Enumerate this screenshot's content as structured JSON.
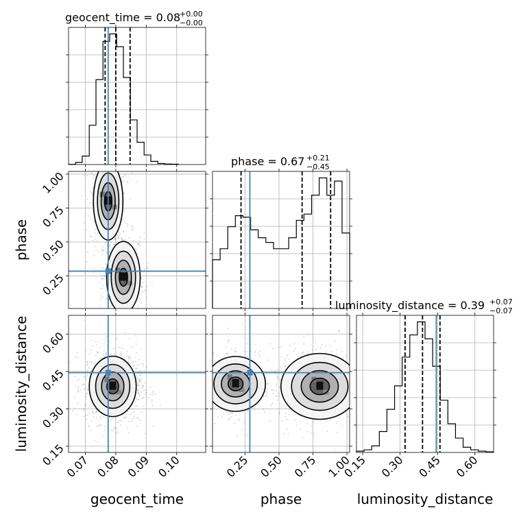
{
  "chart_data": {
    "type": "corner",
    "parameters": [
      "geocent_time",
      "phase",
      "luminosity_distance"
    ],
    "titles": [
      {
        "name": "geocent_time",
        "median": "0.08",
        "plus": "+0.00",
        "minus": "−0.00"
      },
      {
        "name": "phase",
        "median": "0.67",
        "plus": "+0.21",
        "minus": "−0.45"
      },
      {
        "name": "luminosity_distance",
        "median": "0.39",
        "plus": "+0.07",
        "minus": "−0.07"
      }
    ],
    "axis_labels": {
      "geocent_time": "geocent_time",
      "phase": "phase",
      "luminosity_distance": "luminosity_distance"
    },
    "ranges": {
      "geocent_time": [
        0.0645,
        0.1095
      ],
      "phase": [
        0.01,
        1.02
      ],
      "luminosity_distance": [
        0.125,
        0.675
      ]
    },
    "ticks": {
      "geocent_time": {
        "values": [
          0.07,
          0.08,
          0.09,
          0.1
        ],
        "labels": [
          "0.07",
          "0.08",
          "0.09",
          "0.10"
        ]
      },
      "phase": {
        "values": [
          0.25,
          0.5,
          0.75,
          1.0
        ],
        "labels": [
          "0.25",
          "0.50",
          "0.75",
          "1.00"
        ]
      },
      "luminosity_distance": {
        "values": [
          0.15,
          0.3,
          0.45,
          0.6
        ],
        "labels": [
          "0.15",
          "0.30",
          "0.45",
          "0.60"
        ]
      }
    },
    "truth_values": {
      "geocent_time": 0.0775,
      "phase": 0.285,
      "luminosity_distance": 0.445
    },
    "quantiles": {
      "geocent_time": [
        0.0765,
        0.08,
        0.0847
      ],
      "phase": [
        0.22,
        0.67,
        0.88
      ],
      "luminosity_distance": [
        0.32,
        0.39,
        0.46
      ]
    },
    "histograms": {
      "geocent_time": {
        "edges": [
          0.0645,
          0.0668,
          0.069,
          0.0713,
          0.0735,
          0.0758,
          0.078,
          0.0803,
          0.0825,
          0.0848,
          0.087,
          0.0893,
          0.0915,
          0.0938,
          0.096,
          0.0983,
          0.1005
        ],
        "counts": [
          0.2,
          2,
          8,
          37,
          80,
          116,
          123,
          111,
          82,
          42,
          21,
          9,
          3,
          1,
          0.5,
          0.3
        ]
      },
      "phase": {
        "edges": [
          0.01,
          0.0661,
          0.1223,
          0.1784,
          0.2346,
          0.2907,
          0.3468,
          0.403,
          0.4591,
          0.5152,
          0.5714,
          0.6275,
          0.6837,
          0.7398,
          0.7959,
          0.8521,
          0.9082,
          0.9643,
          1.0205
        ],
        "counts": [
          31,
          38,
          52,
          59,
          58,
          50,
          45,
          42,
          38,
          38,
          45,
          56,
          60,
          72,
          83,
          72,
          81,
          48
        ]
      },
      "luminosity_distance": {
        "edges": [
          0.125,
          0.1556,
          0.1861,
          0.2167,
          0.2472,
          0.2778,
          0.3083,
          0.3389,
          0.3694,
          0.4,
          0.4306,
          0.4611,
          0.4917,
          0.5222,
          0.5528,
          0.5833,
          0.6139,
          0.6444,
          0.675
        ],
        "counts": [
          1,
          2,
          5,
          16,
          33,
          51,
          73,
          90,
          100,
          87,
          66,
          40,
          22,
          11,
          4,
          2,
          1,
          0.5
        ]
      }
    },
    "scatter_2d": [
      {
        "x": "geocent_time",
        "y": "phase",
        "modes": [
          {
            "x": 0.0775,
            "y": 0.8,
            "sx": 0.0022,
            "sy": 0.13
          },
          {
            "x": 0.0825,
            "y": 0.24,
            "sx": 0.0025,
            "sy": 0.12
          }
        ]
      },
      {
        "x": "geocent_time",
        "y": "luminosity_distance",
        "modes": [
          {
            "x": 0.079,
            "y": 0.39,
            "sx": 0.0035,
            "sy": 0.055
          }
        ]
      },
      {
        "x": "phase",
        "y": "luminosity_distance",
        "modes": [
          {
            "x": 0.18,
            "y": 0.4,
            "sx": 0.1,
            "sy": 0.05
          },
          {
            "x": 0.8,
            "y": 0.39,
            "sx": 0.13,
            "sy": 0.06
          }
        ]
      }
    ]
  }
}
